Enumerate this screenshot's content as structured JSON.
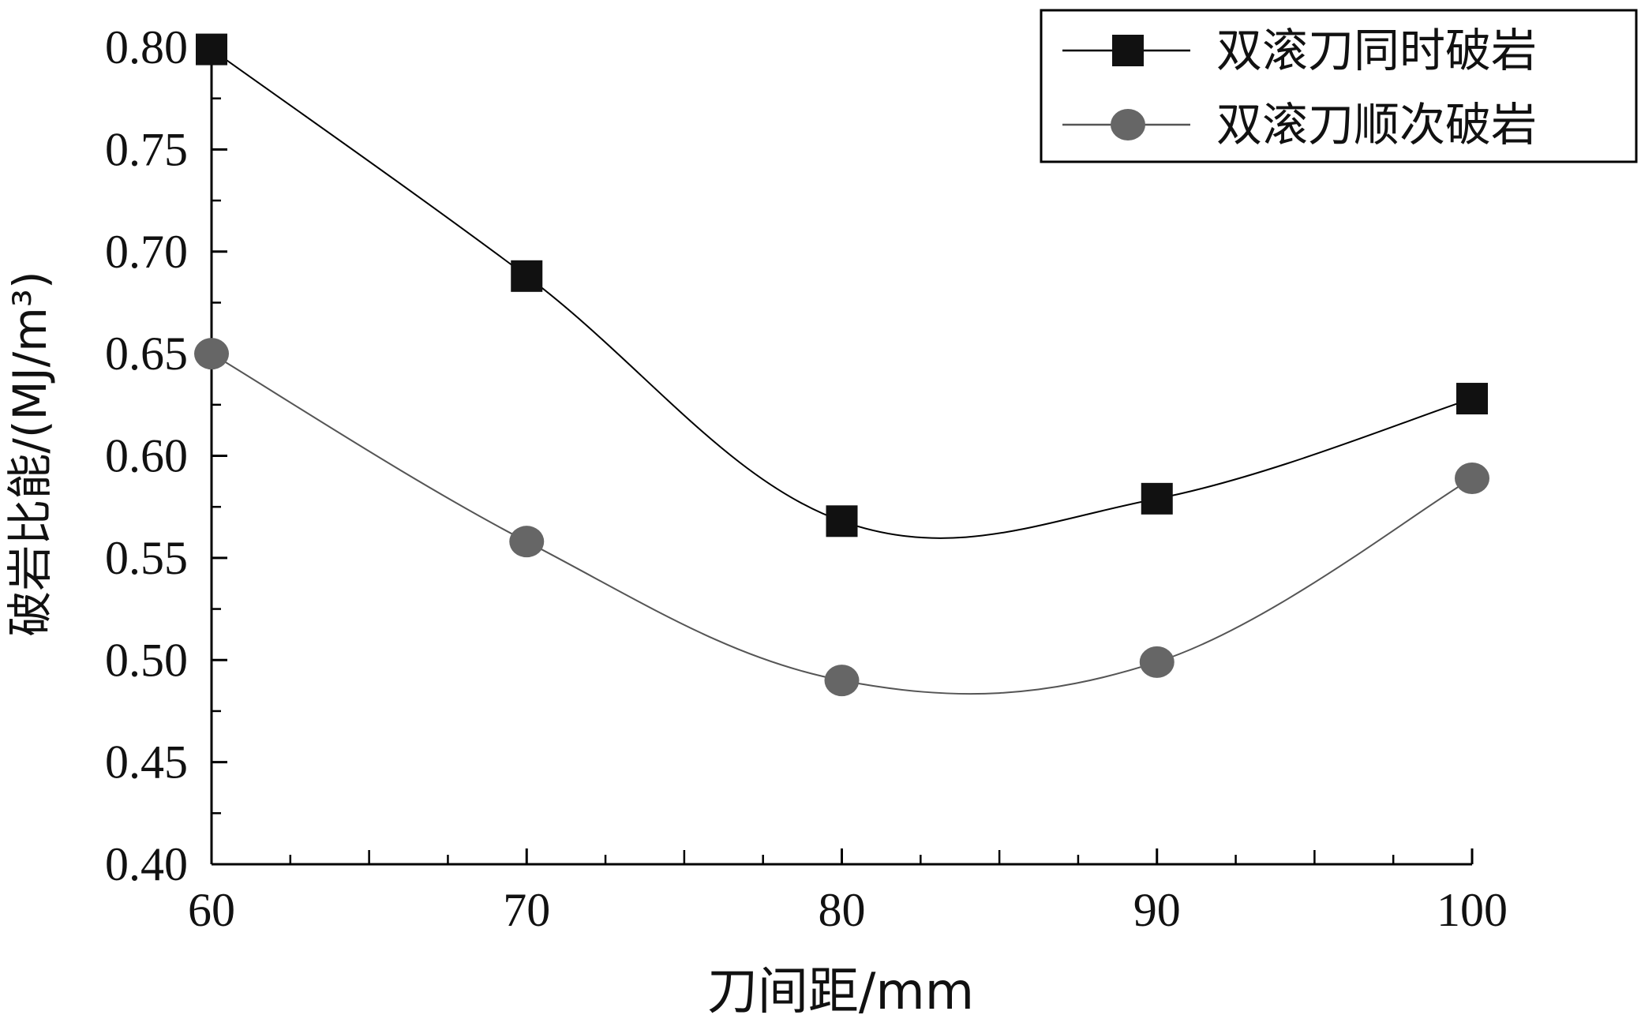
{
  "chart_data": {
    "type": "line",
    "x": [
      60,
      70,
      80,
      90,
      100
    ],
    "series": [
      {
        "name": "双滚刀同时破岩",
        "values": [
          0.799,
          0.688,
          0.568,
          0.579,
          0.628
        ],
        "marker": "square",
        "color": "#000000",
        "marker_color": "#111111"
      },
      {
        "name": "双滚刀顺次破岩",
        "values": [
          0.65,
          0.558,
          0.49,
          0.499,
          0.589
        ],
        "marker": "circle",
        "color": "#555555",
        "marker_color": "#666666"
      }
    ],
    "xlabel": "刀间距/mm",
    "ylabel": "破岩比能/(MJ/m³)",
    "xlim": [
      60,
      100
    ],
    "ylim": [
      0.4,
      0.8
    ],
    "x_ticks": [
      "60",
      "70",
      "80",
      "90",
      "100"
    ],
    "y_ticks": [
      "0.40",
      "0.45",
      "0.50",
      "0.55",
      "0.60",
      "0.65",
      "0.70",
      "0.75",
      "0.80"
    ],
    "grid": false,
    "legend_position": "top-right",
    "smooth": true
  }
}
